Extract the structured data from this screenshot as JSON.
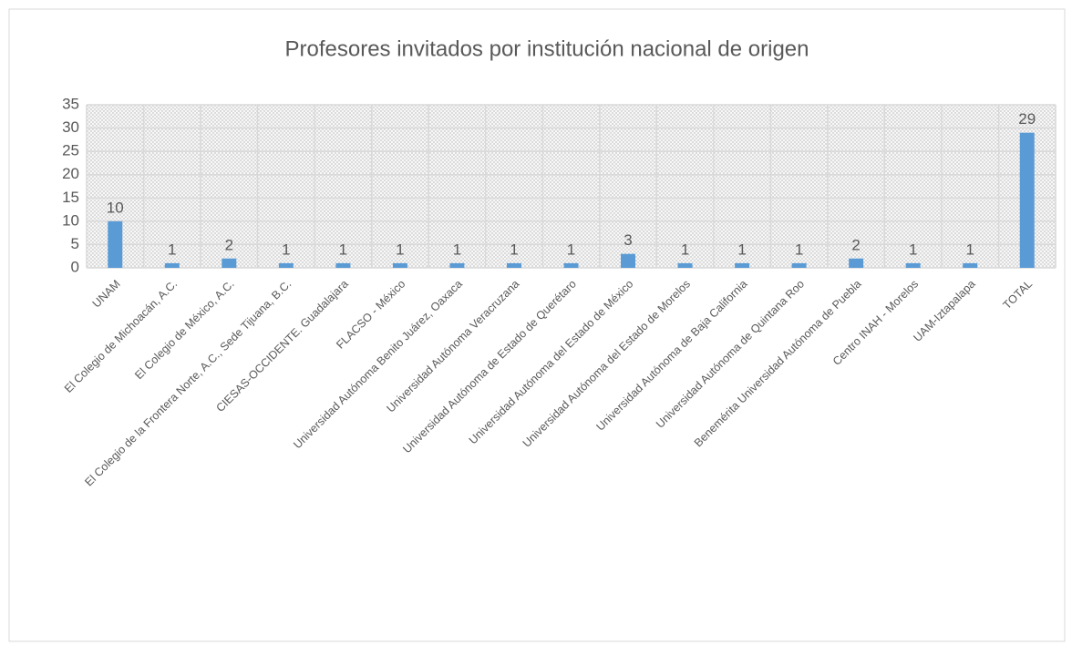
{
  "chart_data": {
    "type": "bar",
    "title": "Profesores invitados por institución nacional de origen",
    "categories": [
      "UNAM",
      "El Colegio de Michoacán, A.C.",
      "El Colegio de México, A.C.",
      "El Colegio de la Frontera Norte, A.C., Sede Tijuana, B.C.",
      "CIESAS-OCCIDENTE. Guadalajara",
      "FLACSO - México",
      "Universidad Autónoma Benito Juárez, Oaxaca",
      "Universidad Autónoma Veracruzana",
      "Universidad Autónoma de Estado de Querétaro",
      "Universidad Autónoma del Estado de México",
      "Universidad Autónoma del Estado de Morelos",
      "Universidad Autónoma de Baja California",
      "Universidad Autónoma de Quintana Roo",
      "Benemérita Universidad Autónoma de Puebla",
      "Centro INAH - Morelos",
      "UAM-Iztapalapa",
      "TOTAL"
    ],
    "values": [
      10,
      1,
      2,
      1,
      1,
      1,
      1,
      1,
      1,
      3,
      1,
      1,
      1,
      2,
      1,
      1,
      29
    ],
    "color": "#5b9bd5",
    "ylim": [
      0,
      35
    ],
    "yticks": [
      0,
      5,
      10,
      15,
      20,
      25,
      30,
      35
    ],
    "grid": true
  }
}
